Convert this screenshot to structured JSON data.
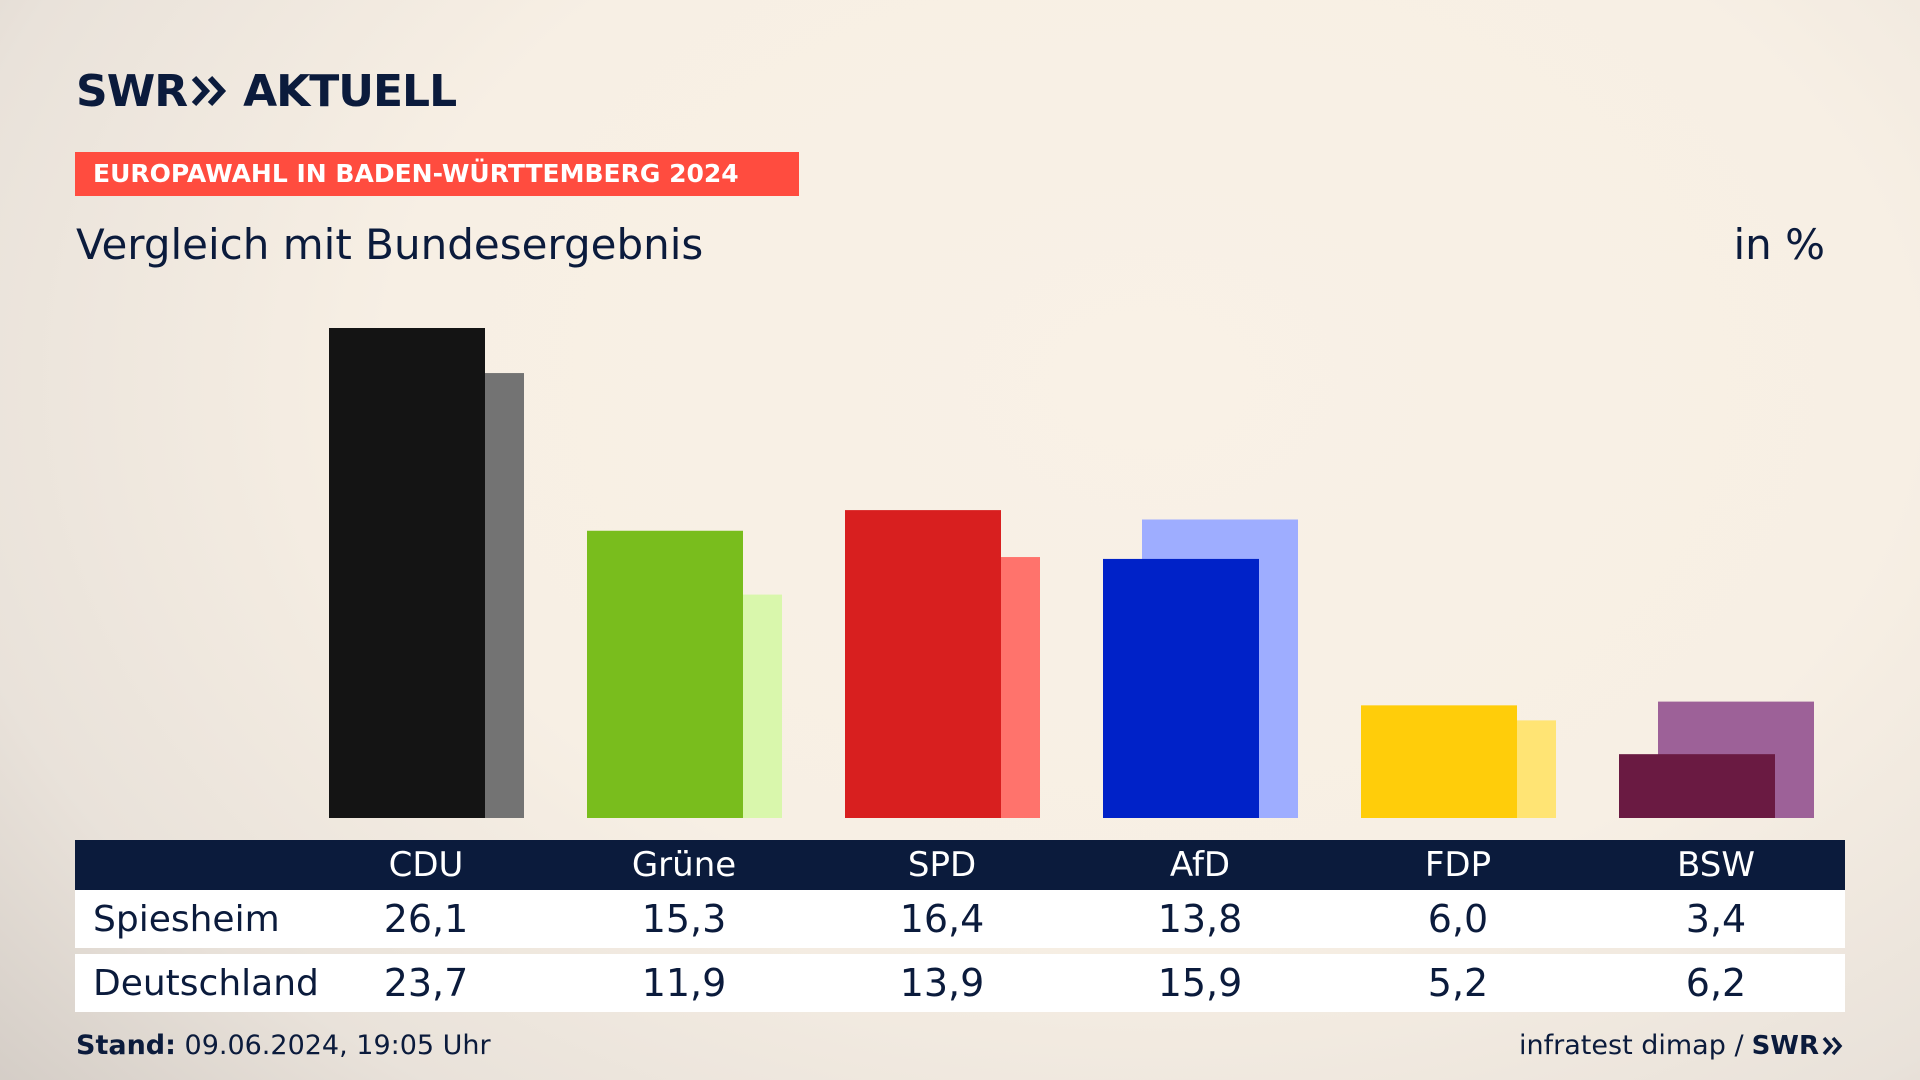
{
  "header": {
    "logo_brand": "SWR",
    "logo_product": "AKTUELL",
    "banner": "EUROPAWAHL IN BADEN-WÜRTTEMBERG 2024",
    "subtitle": "Vergleich mit Bundesergebnis",
    "unit": "in %"
  },
  "colors": {
    "navy": "#0b1b3c",
    "banner": "#ff4c3f"
  },
  "chart_data": {
    "type": "bar",
    "categories": [
      "CDU",
      "Grüne",
      "SPD",
      "AfD",
      "FDP",
      "BSW"
    ],
    "series": [
      {
        "name": "Spiesheim",
        "values": [
          26.1,
          15.3,
          16.4,
          13.8,
          6.0,
          3.4
        ],
        "colors": [
          "#141414",
          "#79bd1d",
          "#d81f1f",
          "#0022c8",
          "#ffcd0a",
          "#6a1a42"
        ]
      },
      {
        "name": "Deutschland",
        "values": [
          23.7,
          11.9,
          13.9,
          15.9,
          5.2,
          6.2
        ],
        "colors": [
          "#737373",
          "#d9f7ac",
          "#ff736c",
          "#9eadff",
          "#ffe474",
          "#9d6198"
        ]
      }
    ],
    "ylim": [
      0,
      26.1
    ],
    "grid": false,
    "legend": "none"
  },
  "table": {
    "rows": [
      {
        "label": "Spiesheim",
        "values": [
          "26,1",
          "15,3",
          "16,4",
          "13,8",
          "6,0",
          "3,4"
        ]
      },
      {
        "label": "Deutschland",
        "values": [
          "23,7",
          "11,9",
          "13,9",
          "15,9",
          "5,2",
          "6,2"
        ]
      }
    ]
  },
  "footer": {
    "stand_label": "Stand:",
    "stand_value": "09.06.2024, 19:05 Uhr",
    "source": "infratest dimap /",
    "source_logo": "SWR"
  }
}
